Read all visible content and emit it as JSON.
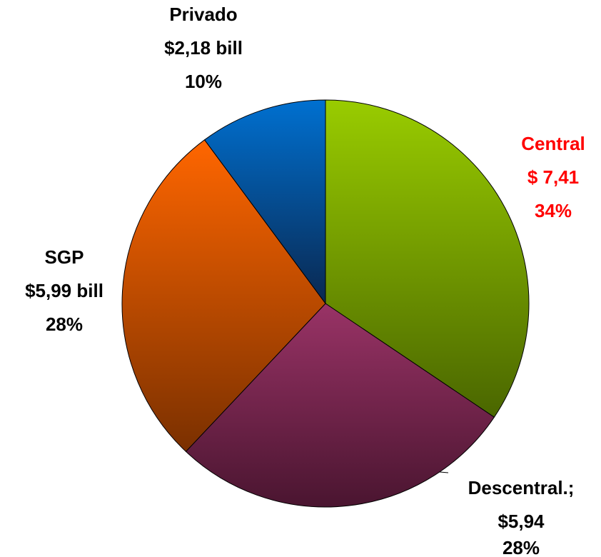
{
  "chart_data": {
    "type": "pie",
    "categories": [
      "Central",
      "Descentral.;",
      "SGP",
      "Privado"
    ],
    "values": [
      7.41,
      5.94,
      5.99,
      2.18
    ],
    "value_labels": [
      "$ 7,41",
      "$5,94",
      "$5,99 bill",
      "$2,18 bill"
    ],
    "percent_labels": [
      "34%",
      "28%",
      "28%",
      "10%"
    ],
    "colors": [
      [
        "#99cc00",
        "#4a6600"
      ],
      [
        "#993366",
        "#4a1530"
      ],
      [
        "#ff6600",
        "#7a3000"
      ],
      [
        "#0070d0",
        "#0a2850"
      ]
    ],
    "label_colors": [
      "#ff0000",
      "#000000",
      "#000000",
      "#000000"
    ]
  }
}
